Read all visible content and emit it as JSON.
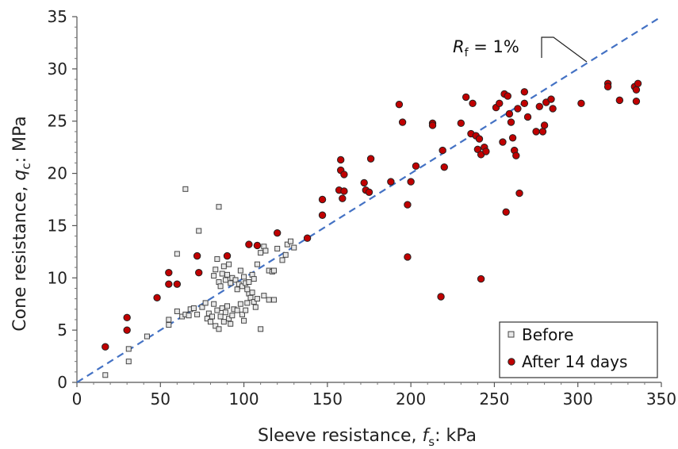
{
  "chart_data": {
    "type": "scatter",
    "xlabel_main": "Sleeve resistance, ",
    "xlabel_symbol": "f",
    "xlabel_sub": "s",
    "xlabel_unit": ": kPa",
    "ylabel_main": "Cone resistance, ",
    "ylabel_symbol": "q",
    "ylabel_sub": "c",
    "ylabel_unit": ": MPa",
    "xlim": [
      0,
      350
    ],
    "ylim": [
      0,
      35
    ],
    "x_ticks": [
      0,
      50,
      100,
      150,
      200,
      250,
      300,
      350
    ],
    "y_ticks": [
      0,
      5,
      10,
      15,
      20,
      25,
      30,
      35
    ],
    "grid": false,
    "legend_position": "bottom-right",
    "annotation": {
      "symbol": "R",
      "subscript": "f",
      "text": " = 1%"
    },
    "reference_line": {
      "style": "dashed",
      "color": "#4472c4",
      "slope_mpa_per_kpa": 0.1,
      "x_range": [
        0,
        350
      ]
    },
    "series": [
      {
        "name": "Before",
        "marker": "square",
        "fill": "#e8e8e8",
        "stroke": "#444444",
        "points": [
          [
            17,
            0.7
          ],
          [
            31,
            2
          ],
          [
            31,
            3.2
          ],
          [
            42,
            4.4
          ],
          [
            55,
            5.5
          ],
          [
            55,
            6
          ],
          [
            60,
            6.8
          ],
          [
            63,
            6.3
          ],
          [
            65,
            6.5
          ],
          [
            67,
            6.4
          ],
          [
            68,
            7
          ],
          [
            70,
            7.1
          ],
          [
            72,
            6.5
          ],
          [
            75,
            7.2
          ],
          [
            77,
            7.6
          ],
          [
            78,
            6.1
          ],
          [
            79,
            6.6
          ],
          [
            80,
            5.8
          ],
          [
            81,
            6.3
          ],
          [
            82,
            7.5
          ],
          [
            83,
            5.4
          ],
          [
            84,
            6.9
          ],
          [
            85,
            5.1
          ],
          [
            86,
            6.3
          ],
          [
            87,
            7.1
          ],
          [
            88,
            5.8
          ],
          [
            89,
            6.7
          ],
          [
            90,
            7.3
          ],
          [
            91,
            6.1
          ],
          [
            92,
            5.6
          ],
          [
            93,
            6.4
          ],
          [
            94,
            7
          ],
          [
            96,
            6.9
          ],
          [
            98,
            7.5
          ],
          [
            99,
            6.5
          ],
          [
            100,
            5.9
          ],
          [
            101,
            6.9
          ],
          [
            102,
            7.6
          ],
          [
            103,
            8.5
          ],
          [
            104,
            8.1
          ],
          [
            105,
            8.6
          ],
          [
            106,
            7.7
          ],
          [
            107,
            7.2
          ],
          [
            108,
            8
          ],
          [
            110,
            5.1
          ],
          [
            112,
            8.3
          ],
          [
            115,
            7.9
          ],
          [
            118,
            7.9
          ],
          [
            82,
            10.2
          ],
          [
            83,
            10.8
          ],
          [
            84,
            11.8
          ],
          [
            85,
            9.6
          ],
          [
            86,
            9.2
          ],
          [
            87,
            10.4
          ],
          [
            88,
            11.1
          ],
          [
            89,
            9.8
          ],
          [
            90,
            10.3
          ],
          [
            91,
            11.3
          ],
          [
            92,
            9.5
          ],
          [
            93,
            10
          ],
          [
            95,
            9.8
          ],
          [
            96,
            8.9
          ],
          [
            97,
            9.4
          ],
          [
            98,
            10.7
          ],
          [
            99,
            9.2
          ],
          [
            100,
            10.1
          ],
          [
            101,
            9.5
          ],
          [
            102,
            8.9
          ],
          [
            103,
            9.6
          ],
          [
            105,
            10.3
          ],
          [
            106,
            9.9
          ],
          [
            108,
            11.3
          ],
          [
            110,
            12.4
          ],
          [
            112,
            13
          ],
          [
            113,
            12.6
          ],
          [
            115,
            10.7
          ],
          [
            117,
            10.6
          ],
          [
            118,
            10.7
          ],
          [
            120,
            12.8
          ],
          [
            123,
            11.7
          ],
          [
            125,
            12.2
          ],
          [
            126,
            13.2
          ],
          [
            128,
            13.5
          ],
          [
            130,
            12.9
          ],
          [
            60,
            12.3
          ],
          [
            73,
            14.5
          ],
          [
            85,
            16.8
          ],
          [
            65,
            18.5
          ]
        ]
      },
      {
        "name": "After 14 days",
        "marker": "circle",
        "fill": "#c00000",
        "stroke": "#222222",
        "points": [
          [
            17,
            3.4
          ],
          [
            30,
            5
          ],
          [
            30,
            6.2
          ],
          [
            48,
            8.1
          ],
          [
            55,
            9.4
          ],
          [
            55,
            10.5
          ],
          [
            60,
            9.4
          ],
          [
            72,
            12.1
          ],
          [
            73,
            10.5
          ],
          [
            90,
            12.1
          ],
          [
            103,
            13.2
          ],
          [
            108,
            13.1
          ],
          [
            120,
            14.3
          ],
          [
            138,
            13.8
          ],
          [
            147,
            16
          ],
          [
            147,
            17.5
          ],
          [
            157,
            18.4
          ],
          [
            158,
            21.3
          ],
          [
            158,
            20.3
          ],
          [
            159,
            17.6
          ],
          [
            160,
            18.3
          ],
          [
            160,
            19.9
          ],
          [
            172,
            19.1
          ],
          [
            173,
            18.4
          ],
          [
            175,
            18.2
          ],
          [
            176,
            21.4
          ],
          [
            188,
            19.2
          ],
          [
            193,
            26.6
          ],
          [
            195,
            24.9
          ],
          [
            198,
            17
          ],
          [
            198,
            12
          ],
          [
            200,
            19.2
          ],
          [
            203,
            20.7
          ],
          [
            213,
            24.8
          ],
          [
            213,
            24.6
          ],
          [
            218,
            8.2
          ],
          [
            219,
            22.2
          ],
          [
            220,
            20.6
          ],
          [
            230,
            24.8
          ],
          [
            233,
            27.3
          ],
          [
            236,
            23.8
          ],
          [
            237,
            26.7
          ],
          [
            239,
            23.6
          ],
          [
            240,
            22.3
          ],
          [
            241,
            23.3
          ],
          [
            242,
            21.8
          ],
          [
            242,
            9.9
          ],
          [
            244,
            22.5
          ],
          [
            245,
            22.1
          ],
          [
            251,
            26.3
          ],
          [
            253,
            26.7
          ],
          [
            255,
            23
          ],
          [
            256,
            27.6
          ],
          [
            257,
            16.3
          ],
          [
            258,
            27.4
          ],
          [
            259,
            25.7
          ],
          [
            260,
            24.9
          ],
          [
            261,
            23.4
          ],
          [
            262,
            22.2
          ],
          [
            263,
            21.7
          ],
          [
            264,
            26.2
          ],
          [
            265,
            18.1
          ],
          [
            268,
            27.8
          ],
          [
            268,
            26.7
          ],
          [
            270,
            25.4
          ],
          [
            275,
            24
          ],
          [
            277,
            26.4
          ],
          [
            279,
            24
          ],
          [
            280,
            24.6
          ],
          [
            281,
            26.8
          ],
          [
            284,
            27.1
          ],
          [
            285,
            26.2
          ],
          [
            302,
            26.7
          ],
          [
            318,
            28.6
          ],
          [
            318,
            28.3
          ],
          [
            325,
            27
          ],
          [
            334,
            28.3
          ],
          [
            335,
            28
          ],
          [
            335,
            26.9
          ],
          [
            336,
            28.6
          ]
        ]
      }
    ]
  },
  "legend": {
    "before_label": "Before",
    "after_label": "After 14 days"
  }
}
